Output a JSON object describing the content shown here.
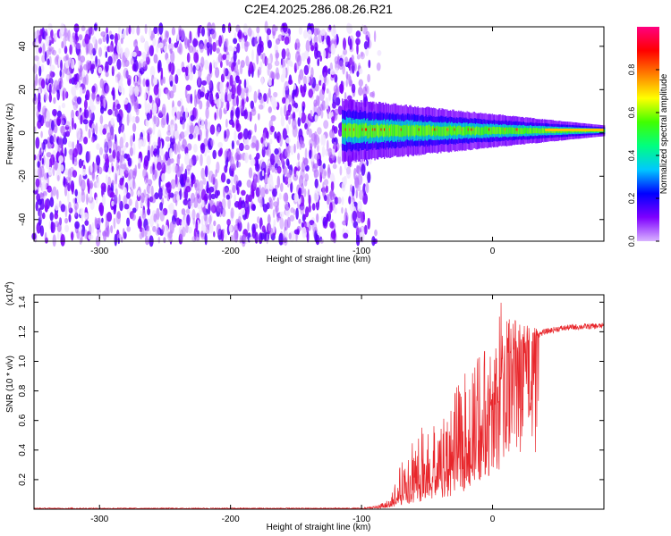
{
  "title": "C2E4.2025.286.08.26.R21",
  "colors": {
    "spectrogram_noise_dark": "#7b1fe6",
    "spectrogram_noise_light": "#e7d6ff",
    "snr_line": "#e8262b",
    "axis": "#000000"
  },
  "chart_data": [
    {
      "type": "heatmap",
      "name": "spectrogram",
      "title": "C2E4.2025.286.08.26.R21",
      "xlabel": "Height of straight line (km)",
      "ylabel": "Frequency (Hz)",
      "xlim": [
        -350,
        85
      ],
      "ylim": [
        -50,
        49
      ],
      "xticks": [
        -300,
        -200,
        -100,
        0
      ],
      "yticks": [
        -40,
        -20,
        0,
        20,
        40
      ],
      "noise_region_x": [
        -350,
        -95
      ],
      "signal_region_x": [
        -115,
        85
      ],
      "signal_center_freq_hz": 1,
      "colorbar": {
        "label": "Normalized spectral amplitude",
        "range": [
          0,
          1
        ],
        "ticks": [
          0.0,
          0.2,
          0.4,
          0.6,
          0.8
        ],
        "tick_labels": [
          "0.0",
          "0.2",
          "0.4",
          "0.6",
          "0.8"
        ],
        "colormap": [
          "#d9b3ff",
          "#7e00ff",
          "#0000ff",
          "#00c8ff",
          "#00ff80",
          "#40ff00",
          "#ffff00",
          "#ff8000",
          "#ff0000",
          "#ff0080"
        ]
      }
    },
    {
      "type": "line",
      "name": "snr",
      "xlabel": "Height of straight line (km)",
      "ylabel": "SNR (10 * v/v)",
      "scale_label": "(x10",
      "scale_exponent": "4",
      "scale_suffix": ")",
      "xlim": [
        -350,
        85
      ],
      "ylim": [
        0,
        1.45
      ],
      "xticks": [
        -300,
        -200,
        -100,
        0
      ],
      "yticks": [
        0.2,
        0.4,
        0.6,
        0.8,
        1.0,
        1.2,
        1.4
      ],
      "ytick_labels": [
        "0.2",
        "0.4",
        "0.6",
        "0.8",
        "1.0",
        "1.2",
        "1.4"
      ],
      "envelope": {
        "x": [
          -350,
          -100,
          -90,
          -80,
          -70,
          -60,
          -50,
          -40,
          -30,
          -20,
          -10,
          0,
          5,
          10,
          20,
          30,
          40,
          50,
          60,
          70,
          85
        ],
        "mean": [
          0.005,
          0.005,
          0.01,
          0.03,
          0.08,
          0.13,
          0.17,
          0.22,
          0.3,
          0.42,
          0.55,
          0.72,
          0.85,
          0.95,
          1.08,
          1.16,
          1.2,
          1.22,
          1.23,
          1.235,
          1.24
        ],
        "peak": [
          0.01,
          0.01,
          0.02,
          0.06,
          0.3,
          0.55,
          0.57,
          0.7,
          0.78,
          0.95,
          1.05,
          1.2,
          1.45,
          1.3,
          1.28,
          1.25,
          1.24,
          1.25,
          1.25,
          1.26,
          1.26
        ]
      }
    }
  ]
}
